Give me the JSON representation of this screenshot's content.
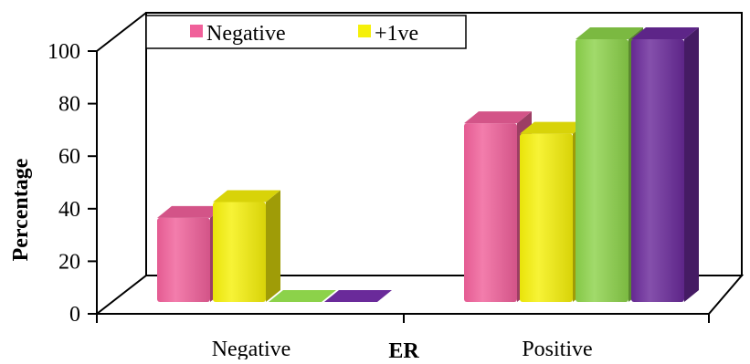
{
  "chart_data": {
    "type": "bar",
    "style": "3d-clustered-column",
    "categories": [
      "Negative",
      "Positive"
    ],
    "series": [
      {
        "name": "Negative",
        "color": "#f0609a",
        "values": [
          32,
          68
        ]
      },
      {
        "name": "+1ve",
        "color": "#f5f00a",
        "values": [
          38,
          64
        ]
      },
      {
        "color": "#8cd24a",
        "values": [
          0,
          100
        ]
      },
      {
        "color": "#6a2a9a",
        "values": [
          0,
          100
        ]
      }
    ],
    "xlabel": "ER",
    "ylabel": "Percentage",
    "ylim": [
      0,
      100
    ],
    "yticks": [
      "0",
      "20",
      "40",
      "60",
      "80",
      "100"
    ],
    "legend": {
      "position": "top-left",
      "entries": [
        {
          "label": "Negative",
          "color": "#f0609a"
        },
        {
          "label": "+1ve",
          "color": "#f5f00a"
        }
      ]
    },
    "grid": false
  }
}
